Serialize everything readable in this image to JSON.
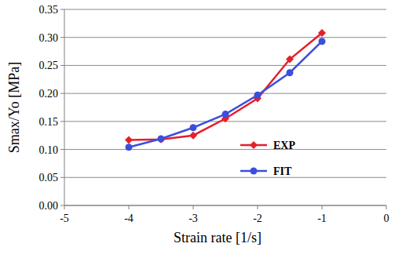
{
  "chart_data": {
    "type": "line",
    "xlabel": "Strain rate [1/s]",
    "ylabel": "Smax/Yo [MPa]",
    "x": [
      -4,
      -3.5,
      -3,
      -2.5,
      -2,
      -1.5,
      -1
    ],
    "series": [
      {
        "name": "EXP",
        "color": "#e3202b",
        "marker": "diamond",
        "line_style": "solid",
        "values": [
          0.117,
          0.118,
          0.125,
          0.155,
          0.191,
          0.261,
          0.308
        ]
      },
      {
        "name": "FIT",
        "color": "#3a4fdc",
        "marker": "circle",
        "line_style": "solid",
        "values": [
          0.104,
          0.119,
          0.139,
          0.163,
          0.197,
          0.237,
          0.293
        ]
      }
    ],
    "xlim": [
      -5,
      0
    ],
    "xticks": [
      -5,
      -4,
      -3,
      -2,
      -1,
      0
    ],
    "ylim": [
      0,
      0.35
    ],
    "yticks": [
      {
        "value": 0,
        "label": "0.00"
      },
      0.05,
      {
        "value": 0.1,
        "label": "0.10"
      },
      0.15,
      {
        "value": 0.2,
        "label": "0.20"
      },
      0.25,
      {
        "value": 0.3,
        "label": "0.30"
      },
      0.35
    ],
    "grid": true,
    "legend": "center"
  }
}
